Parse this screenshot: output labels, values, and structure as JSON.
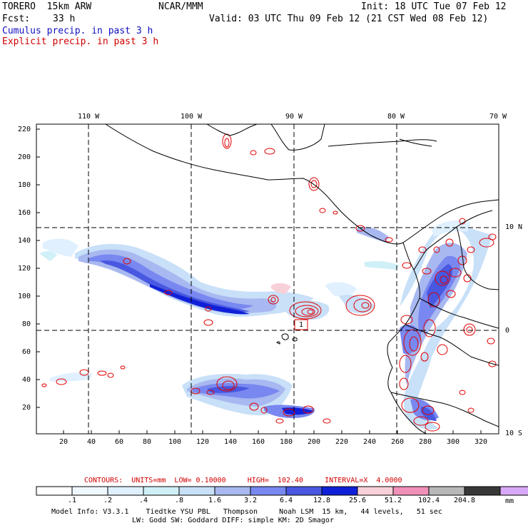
{
  "header": {
    "model": "TORERO  15km ARW",
    "org": "NCAR/MMM",
    "init": "Init: 18 UTC Tue 07 Feb 12",
    "fcst_label": "Fcst:",
    "fcst_value": "33 h",
    "valid": "Valid: 03 UTC Thu 09 Feb 12 (21 CST Wed 08 Feb 12)",
    "line_cumulus": "Cumulus precip. in past 3 h",
    "line_explicit": "Explicit precip. in past 3 h"
  },
  "colors": {
    "cumulus_text": "#1010c0",
    "explicit_text": "#d00000",
    "contour": "#e00000",
    "coast": "#000000"
  },
  "map": {
    "lon_labels": [
      "110 W",
      "100 W",
      "90 W",
      "80 W",
      "70 W"
    ],
    "lat_labels": [
      "10 N",
      "0",
      "10 S"
    ],
    "y_ticks": [
      "220",
      "200",
      "180",
      "160",
      "140",
      "120",
      "100",
      "80",
      "60",
      "40",
      "20"
    ],
    "x_ticks": [
      "20",
      "40",
      "60",
      "80",
      "100",
      "120",
      "140",
      "160",
      "180",
      "200",
      "220",
      "240",
      "260",
      "280",
      "300",
      "320"
    ],
    "annotation": "1"
  },
  "contour_info": {
    "label": "CONTOURS:  UNITS=mm  LOW= 0.10000     HIGH=  102.40     INTERVAL=X  4.0000"
  },
  "legend": {
    "colors": [
      "#ffffff",
      "#f0f8ff",
      "#e0f0ff",
      "#d0f0f8",
      "#c8e0f8",
      "#a8b8f0",
      "#7888f0",
      "#4858e0",
      "#1020d8",
      "#f8d0d8",
      "#f090b8",
      "#b8b8b8",
      "#383838",
      "#d8a8f8"
    ],
    "labels": [
      ".1",
      ".2",
      ".4",
      ".8",
      "1.6",
      "3.2",
      "6.4",
      "12.8",
      "25.6",
      "51.2",
      "102.4",
      "204.8"
    ],
    "units": "mm"
  },
  "footer": {
    "line1": "Model Info: V3.3.1    Tiedtke YSU PBL   Thompson     Noah LSM  15 km,   44 levels,   51 sec",
    "line2": "LW: Godd SW: Goddard DIFF: simple KM: 2D Smagor"
  }
}
